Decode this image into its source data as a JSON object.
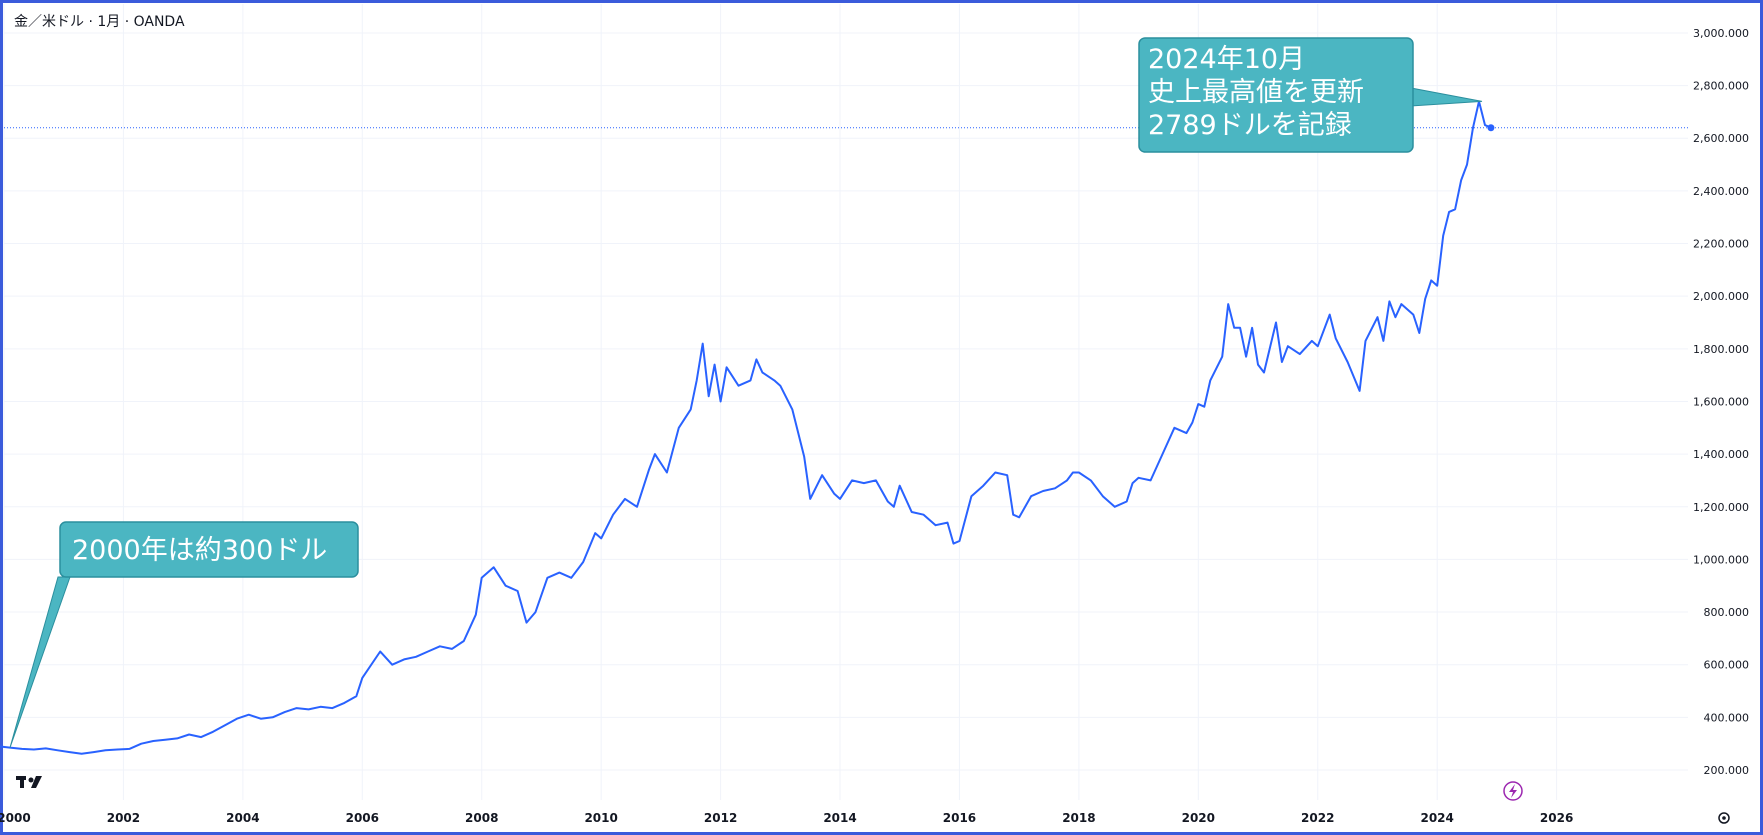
{
  "header": {
    "symbol_title": "金／米ドル · 1月 · OANDA"
  },
  "logo_text": "TV",
  "colors": {
    "line": "#2962ff",
    "callout_fill": "#4bb6c2",
    "callout_stroke": "#2b8f9e",
    "grid": "#f0f3fa",
    "price_line": "#2962ff",
    "lightning_icon": "#9c27b0"
  },
  "icons": {
    "lightning": "lightning-icon",
    "settings": "gear-icon"
  },
  "chart_data": {
    "type": "line",
    "title": "金／米ドル · 1月 · OANDA",
    "xlabel": "",
    "ylabel": "",
    "x_range": [
      2000,
      2028.2
    ],
    "ylim": [
      86,
      3110
    ],
    "x_ticks": [
      {
        "value": 2000,
        "label": "2000"
      },
      {
        "value": 2002,
        "label": "2002"
      },
      {
        "value": 2004,
        "label": "2004"
      },
      {
        "value": 2006,
        "label": "2006"
      },
      {
        "value": 2008,
        "label": "2008"
      },
      {
        "value": 2010,
        "label": "2010"
      },
      {
        "value": 2012,
        "label": "2012"
      },
      {
        "value": 2014,
        "label": "2014"
      },
      {
        "value": 2016,
        "label": "2016"
      },
      {
        "value": 2018,
        "label": "2018"
      },
      {
        "value": 2020,
        "label": "2020"
      },
      {
        "value": 2022,
        "label": "2022"
      },
      {
        "value": 2024,
        "label": "2024"
      },
      {
        "value": 2026,
        "label": "2026"
      }
    ],
    "y_ticks": [
      {
        "value": 200,
        "label": "200.000"
      },
      {
        "value": 400,
        "label": "400.000"
      },
      {
        "value": 600,
        "label": "600.000"
      },
      {
        "value": 800,
        "label": "800.000"
      },
      {
        "value": 1000,
        "label": "1,000.000"
      },
      {
        "value": 1200,
        "label": "1,200.000"
      },
      {
        "value": 1400,
        "label": "1,400.000"
      },
      {
        "value": 1600,
        "label": "1,600.000"
      },
      {
        "value": 1800,
        "label": "1,800.000"
      },
      {
        "value": 2000,
        "label": "2,000.000"
      },
      {
        "value": 2200,
        "label": "2,200.000"
      },
      {
        "value": 2400,
        "label": "2,400.000"
      },
      {
        "value": 2600,
        "label": "2,600.000"
      },
      {
        "value": 2800,
        "label": "2,800.000"
      },
      {
        "value": 3000,
        "label": "3,000.000"
      }
    ],
    "grid": true,
    "last_value": 2640,
    "series": [
      {
        "x": [
          1999.9,
          2000.1,
          2000.3,
          2000.5,
          2000.7,
          2000.9,
          2001.1,
          2001.3,
          2001.5,
          2001.7,
          2001.9,
          2002.1,
          2002.3,
          2002.5,
          2002.7,
          2002.9,
          2003.1,
          2003.3,
          2003.5,
          2003.7,
          2003.9,
          2004.1,
          2004.3,
          2004.5,
          2004.7,
          2004.9,
          2005.1,
          2005.3,
          2005.5,
          2005.7,
          2005.9,
          2006.0,
          2006.3,
          2006.5,
          2006.7,
          2006.9,
          2007.1,
          2007.3,
          2007.5,
          2007.7,
          2007.9,
          2008.0,
          2008.2,
          2008.4,
          2008.6,
          2008.75,
          2008.9,
          2009.1,
          2009.3,
          2009.5,
          2009.7,
          2009.9,
          2010.0,
          2010.2,
          2010.4,
          2010.6,
          2010.8,
          2010.9,
          2011.1,
          2011.3,
          2011.5,
          2011.6,
          2011.7,
          2011.8,
          2011.9,
          2012.0,
          2012.1,
          2012.3,
          2012.5,
          2012.6,
          2012.7,
          2012.9,
          2013.0,
          2013.2,
          2013.4,
          2013.5,
          2013.7,
          2013.9,
          2014.0,
          2014.2,
          2014.4,
          2014.6,
          2014.8,
          2014.9,
          2015.0,
          2015.2,
          2015.4,
          2015.6,
          2015.8,
          2015.9,
          2016.0,
          2016.2,
          2016.4,
          2016.6,
          2016.8,
          2016.9,
          2017.0,
          2017.2,
          2017.4,
          2017.6,
          2017.8,
          2017.9,
          2018.0,
          2018.2,
          2018.4,
          2018.6,
          2018.8,
          2018.9,
          2019.0,
          2019.2,
          2019.4,
          2019.6,
          2019.8,
          2019.9,
          2020.0,
          2020.1,
          2020.2,
          2020.4,
          2020.5,
          2020.6,
          2020.7,
          2020.8,
          2020.9,
          2021.0,
          2021.1,
          2021.3,
          2021.4,
          2021.5,
          2021.7,
          2021.9,
          2022.0,
          2022.2,
          2022.3,
          2022.5,
          2022.7,
          2022.8,
          2023.0,
          2023.1,
          2023.2,
          2023.3,
          2023.4,
          2023.6,
          2023.7,
          2023.8,
          2023.9,
          2024.0,
          2024.1,
          2024.2,
          2024.3,
          2024.4,
          2024.5,
          2024.6,
          2024.7,
          2024.8,
          2024.9
        ],
        "y": [
          290,
          285,
          280,
          278,
          282,
          275,
          268,
          262,
          268,
          275,
          278,
          280,
          300,
          310,
          315,
          320,
          335,
          325,
          345,
          370,
          395,
          410,
          395,
          400,
          420,
          435,
          430,
          440,
          435,
          455,
          480,
          550,
          650,
          600,
          620,
          630,
          650,
          670,
          660,
          690,
          790,
          930,
          970,
          900,
          880,
          760,
          800,
          930,
          950,
          930,
          990,
          1100,
          1080,
          1170,
          1230,
          1200,
          1340,
          1400,
          1330,
          1500,
          1570,
          1680,
          1820,
          1620,
          1740,
          1600,
          1730,
          1660,
          1680,
          1760,
          1710,
          1680,
          1660,
          1570,
          1390,
          1230,
          1320,
          1250,
          1230,
          1300,
          1290,
          1300,
          1220,
          1200,
          1280,
          1180,
          1170,
          1130,
          1140,
          1060,
          1070,
          1240,
          1280,
          1330,
          1320,
          1170,
          1160,
          1240,
          1260,
          1270,
          1300,
          1330,
          1330,
          1300,
          1240,
          1200,
          1220,
          1290,
          1310,
          1300,
          1400,
          1500,
          1480,
          1520,
          1590,
          1580,
          1680,
          1770,
          1970,
          1880,
          1880,
          1770,
          1880,
          1740,
          1710,
          1900,
          1750,
          1810,
          1780,
          1830,
          1810,
          1930,
          1840,
          1750,
          1640,
          1830,
          1920,
          1830,
          1980,
          1920,
          1970,
          1930,
          1860,
          1990,
          2060,
          2040,
          2230,
          2320,
          2330,
          2440,
          2500,
          2640,
          2740,
          2650,
          2640
        ]
      }
    ],
    "annotations": [
      {
        "lines": [
          "2000年は約300ドル"
        ],
        "x": 2000.1,
        "y": 285
      },
      {
        "lines": [
          "2024年10月",
          "史上最高値を更新",
          "2789ドルを記録"
        ],
        "x": 2024.75,
        "y": 2740
      }
    ]
  }
}
